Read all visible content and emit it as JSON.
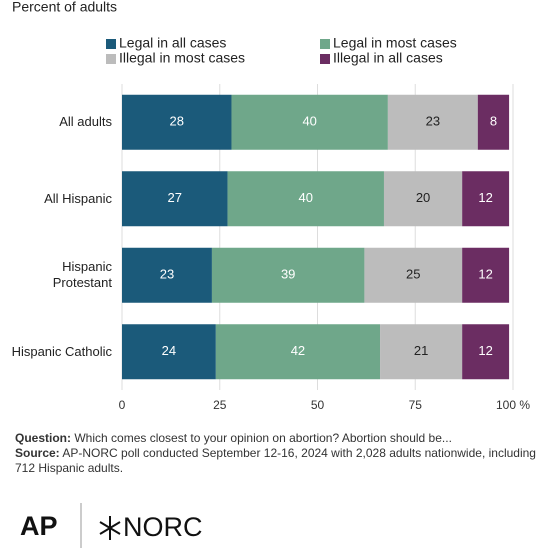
{
  "chart_data": {
    "type": "stacked-bar-horizontal",
    "subtitle": "Percent of adults",
    "categories": [
      "All adults",
      "All Hispanic",
      "Hispanic Protestant",
      "Hispanic Catholic"
    ],
    "series": [
      {
        "name": "Legal in all cases",
        "color": "#1b5a7a",
        "values": [
          28,
          27,
          23,
          24
        ]
      },
      {
        "name": "Legal in most cases",
        "color": "#6fa78a",
        "values": [
          40,
          40,
          39,
          42
        ]
      },
      {
        "name": "Illegal in most cases",
        "color": "#bcbcbc",
        "values": [
          23,
          20,
          25,
          21
        ]
      },
      {
        "name": "Illegal in all cases",
        "color": "#6b2d62",
        "values": [
          8,
          12,
          12,
          12
        ]
      }
    ],
    "xlim": [
      0,
      100
    ],
    "xticks": [
      0,
      25,
      50,
      75,
      {
        "value": 100,
        "label": "100 %"
      }
    ],
    "grid": true
  },
  "footer": {
    "question_label": "Question:",
    "question_text": "Which comes closest to your opinion on abortion? Abortion should be...",
    "source_label": "Source:",
    "source_text": "AP-NORC poll conducted September 12-16, 2024 with 2,028 adults nationwide, including 712 Hispanic adults."
  },
  "logos": {
    "ap": "AP",
    "norc": "NORC"
  }
}
